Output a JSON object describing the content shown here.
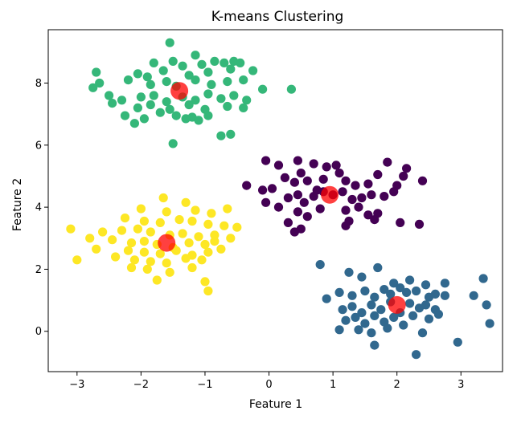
{
  "chart_data": {
    "type": "scatter",
    "title": "K-means Clustering",
    "xlabel": "Feature 1",
    "ylabel": "Feature 2",
    "xlim": [
      -3.45,
      3.65
    ],
    "ylim": [
      -1.3,
      9.72
    ],
    "xticks": [
      -3,
      -2,
      -1,
      0,
      1,
      2,
      3
    ],
    "yticks": [
      0,
      2,
      4,
      6,
      8
    ],
    "grid": false,
    "legend": "none",
    "series": [
      {
        "cluster": 0,
        "color": "#440154",
        "points": [
          [
            -0.05,
            5.5
          ],
          [
            0.15,
            5.35
          ],
          [
            0.45,
            5.5
          ],
          [
            0.7,
            5.4
          ],
          [
            0.9,
            5.3
          ],
          [
            1.05,
            5.35
          ],
          [
            1.85,
            5.45
          ],
          [
            2.1,
            5.0
          ],
          [
            2.15,
            5.25
          ],
          [
            -0.1,
            4.55
          ],
          [
            0.05,
            4.6
          ],
          [
            0.25,
            4.95
          ],
          [
            0.4,
            4.8
          ],
          [
            0.5,
            5.1
          ],
          [
            0.6,
            4.85
          ],
          [
            0.75,
            4.55
          ],
          [
            0.85,
            4.9
          ],
          [
            1.1,
            5.1
          ],
          [
            1.2,
            4.85
          ],
          [
            1.35,
            4.7
          ],
          [
            1.55,
            4.75
          ],
          [
            1.7,
            5.05
          ],
          [
            2.0,
            4.7
          ],
          [
            2.4,
            4.85
          ],
          [
            0.3,
            4.3
          ],
          [
            0.45,
            4.4
          ],
          [
            0.55,
            4.15
          ],
          [
            0.7,
            4.35
          ],
          [
            0.85,
            4.5
          ],
          [
            1.0,
            4.4
          ],
          [
            1.15,
            4.5
          ],
          [
            1.3,
            4.25
          ],
          [
            1.45,
            4.3
          ],
          [
            1.6,
            4.4
          ],
          [
            1.8,
            4.35
          ],
          [
            1.95,
            4.5
          ],
          [
            -0.35,
            4.7
          ],
          [
            -0.05,
            4.15
          ],
          [
            0.15,
            4.0
          ],
          [
            0.45,
            3.85
          ],
          [
            0.6,
            3.7
          ],
          [
            0.8,
            3.95
          ],
          [
            1.2,
            3.9
          ],
          [
            1.4,
            4.0
          ],
          [
            1.55,
            3.75
          ],
          [
            1.7,
            3.8
          ],
          [
            0.3,
            3.5
          ],
          [
            0.5,
            3.3
          ],
          [
            0.4,
            3.2
          ],
          [
            1.25,
            3.55
          ],
          [
            1.2,
            3.4
          ],
          [
            1.65,
            3.6
          ],
          [
            2.05,
            3.5
          ],
          [
            2.35,
            3.45
          ]
        ]
      },
      {
        "cluster": 1,
        "color": "#31688e",
        "points": [
          [
            0.8,
            2.15
          ],
          [
            1.25,
            1.9
          ],
          [
            1.45,
            1.75
          ],
          [
            1.7,
            2.05
          ],
          [
            1.95,
            1.55
          ],
          [
            2.2,
            1.65
          ],
          [
            2.45,
            1.5
          ],
          [
            2.75,
            1.55
          ],
          [
            3.35,
            1.7
          ],
          [
            0.9,
            1.05
          ],
          [
            1.1,
            1.25
          ],
          [
            1.3,
            1.15
          ],
          [
            1.5,
            1.3
          ],
          [
            1.65,
            1.1
          ],
          [
            1.8,
            1.35
          ],
          [
            1.9,
            1.2
          ],
          [
            2.05,
            1.4
          ],
          [
            2.15,
            1.25
          ],
          [
            2.3,
            1.3
          ],
          [
            2.5,
            1.1
          ],
          [
            2.6,
            1.2
          ],
          [
            2.75,
            1.15
          ],
          [
            3.2,
            1.15
          ],
          [
            3.4,
            0.85
          ],
          [
            1.15,
            0.7
          ],
          [
            1.3,
            0.8
          ],
          [
            1.45,
            0.6
          ],
          [
            1.6,
            0.85
          ],
          [
            1.75,
            0.7
          ],
          [
            1.9,
            0.95
          ],
          [
            2.05,
            0.6
          ],
          [
            2.2,
            0.9
          ],
          [
            2.35,
            0.75
          ],
          [
            2.45,
            0.85
          ],
          [
            2.6,
            0.7
          ],
          [
            1.2,
            0.35
          ],
          [
            1.35,
            0.45
          ],
          [
            1.5,
            0.25
          ],
          [
            1.65,
            0.5
          ],
          [
            1.8,
            0.3
          ],
          [
            1.95,
            0.45
          ],
          [
            2.1,
            0.2
          ],
          [
            2.25,
            0.5
          ],
          [
            2.5,
            0.4
          ],
          [
            2.65,
            0.55
          ],
          [
            3.45,
            0.25
          ],
          [
            1.1,
            0.05
          ],
          [
            1.4,
            0.05
          ],
          [
            1.6,
            -0.05
          ],
          [
            1.85,
            0.1
          ],
          [
            2.4,
            -0.05
          ],
          [
            1.65,
            -0.45
          ],
          [
            2.3,
            -0.75
          ],
          [
            2.95,
            -0.35
          ]
        ]
      },
      {
        "cluster": 2,
        "color": "#35b779",
        "points": [
          [
            -1.55,
            9.3
          ],
          [
            -1.15,
            8.9
          ],
          [
            -1.8,
            8.65
          ],
          [
            -1.5,
            8.7
          ],
          [
            -1.35,
            8.55
          ],
          [
            -1.05,
            8.6
          ],
          [
            -0.85,
            8.7
          ],
          [
            -0.7,
            8.65
          ],
          [
            -0.55,
            8.7
          ],
          [
            -0.45,
            8.65
          ],
          [
            -2.7,
            8.35
          ],
          [
            -2.05,
            8.3
          ],
          [
            -1.9,
            8.2
          ],
          [
            -1.65,
            8.4
          ],
          [
            -1.25,
            8.25
          ],
          [
            -0.95,
            8.35
          ],
          [
            -0.6,
            8.45
          ],
          [
            -0.25,
            8.4
          ],
          [
            -2.65,
            8.0
          ],
          [
            -2.2,
            8.1
          ],
          [
            -1.85,
            7.95
          ],
          [
            -1.6,
            8.05
          ],
          [
            -1.45,
            7.9
          ],
          [
            -1.15,
            8.1
          ],
          [
            -0.9,
            7.95
          ],
          [
            -0.65,
            8.05
          ],
          [
            -0.4,
            8.1
          ],
          [
            -0.1,
            7.8
          ],
          [
            0.35,
            7.8
          ],
          [
            -2.75,
            7.85
          ],
          [
            -2.5,
            7.6
          ],
          [
            -2.3,
            7.45
          ],
          [
            -2.0,
            7.55
          ],
          [
            -1.8,
            7.6
          ],
          [
            -1.6,
            7.4
          ],
          [
            -1.35,
            7.55
          ],
          [
            -1.15,
            7.45
          ],
          [
            -0.95,
            7.65
          ],
          [
            -0.75,
            7.5
          ],
          [
            -0.55,
            7.6
          ],
          [
            -0.35,
            7.45
          ],
          [
            -2.45,
            7.35
          ],
          [
            -2.05,
            7.2
          ],
          [
            -1.85,
            7.3
          ],
          [
            -1.55,
            7.15
          ],
          [
            -1.25,
            7.3
          ],
          [
            -1.0,
            7.15
          ],
          [
            -0.65,
            7.25
          ],
          [
            -0.4,
            7.2
          ],
          [
            -2.25,
            6.95
          ],
          [
            -1.95,
            6.85
          ],
          [
            -1.7,
            7.05
          ],
          [
            -1.45,
            6.95
          ],
          [
            -1.2,
            6.9
          ],
          [
            -0.95,
            6.95
          ],
          [
            -2.1,
            6.7
          ],
          [
            -1.3,
            6.85
          ],
          [
            -1.1,
            6.8
          ],
          [
            -0.75,
            6.3
          ],
          [
            -0.6,
            6.35
          ],
          [
            -1.5,
            6.05
          ]
        ]
      },
      {
        "cluster": 3,
        "color": "#fde725",
        "points": [
          [
            -1.65,
            4.3
          ],
          [
            -1.3,
            4.15
          ],
          [
            -2.0,
            3.95
          ],
          [
            -1.6,
            3.85
          ],
          [
            -1.15,
            3.9
          ],
          [
            -0.9,
            3.8
          ],
          [
            -0.65,
            3.95
          ],
          [
            -2.25,
            3.65
          ],
          [
            -1.95,
            3.55
          ],
          [
            -1.7,
            3.5
          ],
          [
            -1.4,
            3.6
          ],
          [
            -1.2,
            3.55
          ],
          [
            -0.95,
            3.45
          ],
          [
            -0.7,
            3.4
          ],
          [
            -0.5,
            3.35
          ],
          [
            -3.1,
            3.3
          ],
          [
            -2.6,
            3.2
          ],
          [
            -2.3,
            3.25
          ],
          [
            -2.05,
            3.3
          ],
          [
            -1.85,
            3.2
          ],
          [
            -1.55,
            3.1
          ],
          [
            -1.35,
            3.15
          ],
          [
            -1.1,
            3.05
          ],
          [
            -0.85,
            3.1
          ],
          [
            -0.6,
            3.0
          ],
          [
            -2.8,
            3.0
          ],
          [
            -2.45,
            2.95
          ],
          [
            -2.15,
            2.85
          ],
          [
            -1.95,
            2.9
          ],
          [
            -1.75,
            2.8
          ],
          [
            -1.5,
            2.7
          ],
          [
            -1.25,
            2.85
          ],
          [
            -1.0,
            2.8
          ],
          [
            -0.85,
            2.9
          ],
          [
            -2.2,
            2.6
          ],
          [
            -1.95,
            2.55
          ],
          [
            -1.7,
            2.5
          ],
          [
            -1.45,
            2.6
          ],
          [
            -1.2,
            2.45
          ],
          [
            -0.95,
            2.55
          ],
          [
            -0.75,
            2.65
          ],
          [
            -2.7,
            2.65
          ],
          [
            -2.4,
            2.4
          ],
          [
            -2.1,
            2.3
          ],
          [
            -1.85,
            2.25
          ],
          [
            -1.6,
            2.2
          ],
          [
            -1.3,
            2.35
          ],
          [
            -1.05,
            2.3
          ],
          [
            -3.0,
            2.3
          ],
          [
            -2.15,
            2.05
          ],
          [
            -1.9,
            2.0
          ],
          [
            -1.55,
            1.9
          ],
          [
            -1.2,
            2.05
          ],
          [
            -1.75,
            1.65
          ],
          [
            -1.0,
            1.6
          ],
          [
            -0.95,
            1.3
          ]
        ]
      }
    ],
    "centroids": {
      "color": "#ff0000",
      "points": [
        [
          -1.4,
          7.75
        ],
        [
          0.95,
          4.4
        ],
        [
          -1.6,
          2.85
        ],
        [
          2.0,
          0.85
        ]
      ]
    }
  }
}
